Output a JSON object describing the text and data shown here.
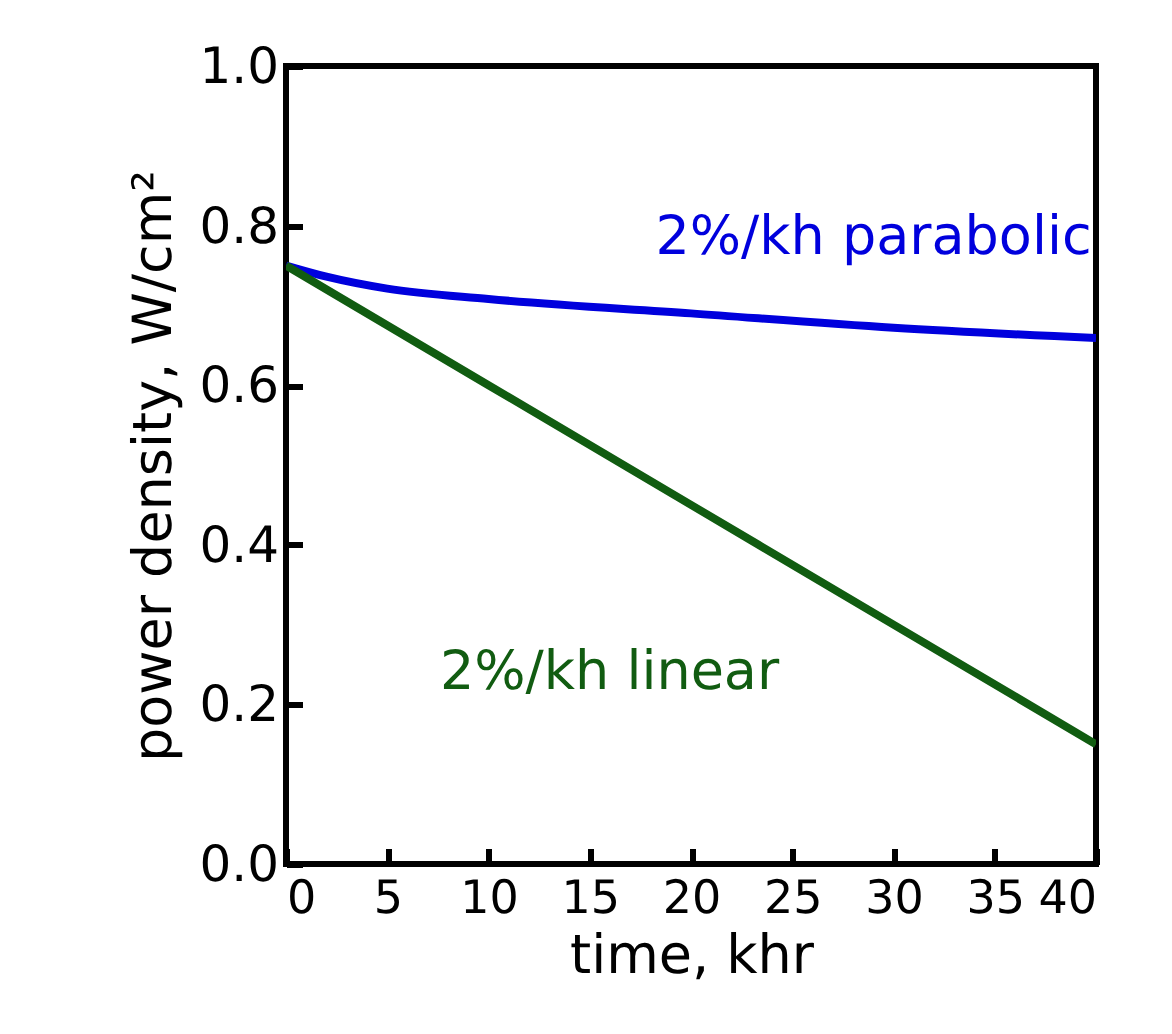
{
  "chart_data": {
    "type": "line",
    "xlabel": "time, khr",
    "ylabel": "power density, W/cm²",
    "xlim": [
      0,
      40
    ],
    "xticks": [
      0,
      5,
      10,
      15,
      20,
      25,
      30,
      35,
      40
    ],
    "ylim": [
      0,
      1
    ],
    "yticks": [
      {
        "value": 0,
        "label": "0.0"
      },
      {
        "value": 0.2,
        "label": "0.2"
      },
      {
        "value": 0.4,
        "label": "0.4"
      },
      {
        "value": 0.6,
        "label": "0.6"
      },
      {
        "value": 0.8,
        "label": "0.8"
      },
      {
        "value": 1,
        "label": "1.0"
      }
    ],
    "series": [
      {
        "name": "2%/kh parabolic",
        "color": "#0000dd",
        "x": [
          0,
          2,
          5,
          10,
          20,
          30,
          40
        ],
        "values": [
          0.75,
          0.736,
          0.721,
          0.708,
          0.69,
          0.672,
          0.659
        ]
      },
      {
        "name": "2%/kh linear",
        "color": "#115c11",
        "x": [
          0,
          10,
          20,
          30,
          40
        ],
        "values": [
          0.75,
          0.6,
          0.45,
          0.3,
          0.15
        ]
      }
    ],
    "grid": false,
    "legend": false
  }
}
